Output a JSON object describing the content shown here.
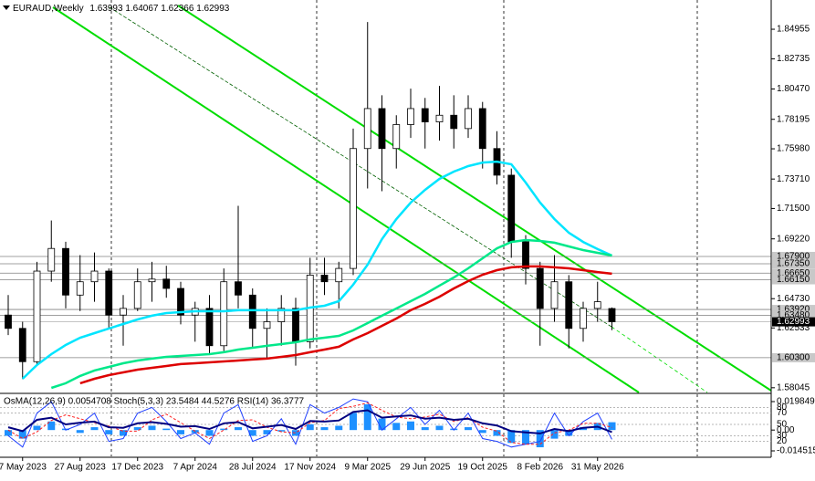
{
  "chart_data": [
    {
      "type": "candlestick",
      "title": "EURAUD,Weekly",
      "header_values": [
        "1.63993",
        "1.64067",
        "1.62366",
        "1.62993"
      ],
      "categories": [
        null,
        "7 May 2023",
        null,
        null,
        null,
        "27 Aug 2023",
        null,
        null,
        null,
        "17 Dec 2023",
        null,
        null,
        null,
        "7 Apr 2024",
        null,
        null,
        null,
        "28 Jul 2024",
        null,
        null,
        null,
        "17 Nov 2024",
        null,
        null,
        null,
        "9 Mar 2025",
        null,
        null,
        null,
        "29 Jun 2025",
        null,
        null,
        null,
        "19 Oct 2025",
        null,
        null,
        null,
        "8 Feb 2026",
        null,
        null,
        null,
        "31 May 2026",
        null
      ],
      "open": [
        1.635,
        1.625,
        1.6,
        1.668,
        1.685,
        1.65,
        1.66,
        1.668,
        1.635,
        1.64,
        1.66,
        1.662,
        1.655,
        1.635,
        1.64,
        1.612,
        1.66,
        1.65,
        1.625,
        1.63,
        1.64,
        1.615,
        1.665,
        1.66,
        1.67,
        1.76,
        1.79,
        1.76,
        1.778,
        1.79,
        1.78,
        1.785,
        1.775,
        1.79,
        1.76,
        1.74,
        1.69,
        1.67,
        1.64,
        1.66,
        1.625,
        1.64,
        1.63993
      ],
      "high": [
        1.65,
        1.63,
        1.675,
        1.706,
        1.69,
        1.68,
        1.682,
        1.67,
        1.65,
        1.67,
        1.675,
        1.672,
        1.66,
        1.645,
        1.65,
        1.67,
        1.717,
        1.655,
        1.64,
        1.65,
        1.648,
        1.678,
        1.678,
        1.675,
        1.775,
        1.855,
        1.8,
        1.785,
        1.805,
        1.798,
        1.807,
        1.8,
        1.8,
        1.795,
        1.773,
        1.745,
        1.695,
        1.675,
        1.68,
        1.665,
        1.645,
        1.66,
        1.64067
      ],
      "low": [
        1.62,
        1.587,
        1.598,
        1.66,
        1.64,
        1.638,
        1.645,
        1.625,
        1.612,
        1.638,
        1.645,
        1.648,
        1.628,
        1.615,
        1.605,
        1.608,
        1.64,
        1.61,
        1.602,
        1.612,
        1.597,
        1.61,
        1.65,
        1.64,
        1.665,
        1.73,
        1.728,
        1.745,
        1.768,
        1.76,
        1.766,
        1.76,
        1.768,
        1.745,
        1.733,
        1.678,
        1.658,
        1.612,
        1.63,
        1.61,
        1.615,
        1.63,
        1.62366
      ],
      "close": [
        1.625,
        1.6,
        1.668,
        1.685,
        1.65,
        1.66,
        1.668,
        1.635,
        1.64,
        1.66,
        1.662,
        1.655,
        1.635,
        1.64,
        1.612,
        1.66,
        1.65,
        1.625,
        1.63,
        1.64,
        1.615,
        1.665,
        1.66,
        1.67,
        1.76,
        1.79,
        1.76,
        1.778,
        1.79,
        1.78,
        1.785,
        1.775,
        1.79,
        1.76,
        1.74,
        1.69,
        1.67,
        1.64,
        1.66,
        1.625,
        1.64,
        1.645,
        1.62993
      ],
      "up_color": "#ffffff",
      "down_color": "#000000",
      "candle_stroke": "#000000",
      "lines": [
        {
          "color": "#00e5ff",
          "values": [
            null,
            1.5872,
            1.5975,
            1.6057,
            1.6125,
            1.618,
            1.6214,
            1.6249,
            1.6283,
            1.6317,
            1.6345,
            1.6365,
            1.6372,
            1.6379,
            1.6379,
            1.6379,
            1.6386,
            1.6386,
            1.6386,
            1.6386,
            1.6386,
            1.6406,
            1.642,
            1.6454,
            1.6578,
            1.6728,
            1.692,
            1.7071,
            1.7194,
            1.729,
            1.7372,
            1.7427,
            1.7468,
            1.7495,
            1.7502,
            1.7482,
            1.7345,
            1.7194,
            1.7071,
            1.6968,
            1.6899,
            1.6845,
            1.6797
          ]
        },
        {
          "color": "#00e88a",
          "values": [
            null,
            null,
            null,
            1.5803,
            1.5838,
            1.5893,
            1.5934,
            1.5961,
            1.5988,
            1.6009,
            1.6023,
            1.6036,
            1.6043,
            1.605,
            1.6057,
            1.6071,
            1.6091,
            1.6105,
            1.6119,
            1.6132,
            1.6146,
            1.6167,
            1.618,
            1.6194,
            1.6235,
            1.629,
            1.6345,
            1.6399,
            1.6454,
            1.6509,
            1.6571,
            1.6632,
            1.6701,
            1.6776,
            1.6851,
            1.6899,
            1.6913,
            1.6906,
            1.6893,
            1.6865,
            1.6838,
            1.6817,
            1.6797
          ]
        },
        {
          "color": "#dd0000",
          "values": [
            null,
            null,
            null,
            null,
            null,
            1.5838,
            1.5872,
            1.5899,
            1.592,
            1.594,
            1.5954,
            1.5968,
            1.5982,
            1.5988,
            1.5995,
            1.6002,
            1.6009,
            1.6016,
            1.6023,
            1.6036,
            1.605,
            1.6071,
            1.6091,
            1.6112,
            1.6167,
            1.6214,
            1.6269,
            1.6324,
            1.6386,
            1.6434,
            1.6488,
            1.655,
            1.6605,
            1.6653,
            1.6687,
            1.6708,
            1.6715,
            1.6715,
            1.6708,
            1.6701,
            1.6687,
            1.6673,
            1.666
          ]
        }
      ],
      "ylim": [
        1.5769,
        1.8715
      ],
      "yticks": [
        1.84955,
        1.82735,
        {
          "value": 1.8047,
          "label": "1.80470"
        },
        1.78195,
        {
          "value": 1.7598,
          "label": "1.75980"
        },
        {
          "value": 1.7371,
          "label": "1.73710"
        },
        {
          "value": 1.715,
          "label": "1.71500"
        },
        {
          "value": 1.6922,
          "label": "1.69220"
        },
        {
          "value": 1.6473,
          "label": "1.64730"
        },
        1.62533,
        1.58045
      ],
      "levels": [
        {
          "value": 1.679,
          "label": "1.67900"
        },
        {
          "value": 1.6735,
          "label": "1.67350"
        },
        {
          "value": 1.6665,
          "label": "1.66650"
        },
        {
          "value": 1.6615,
          "label": "1.66150"
        },
        {
          "value": 1.6392,
          "label": "1.63920"
        },
        {
          "value": 1.6348,
          "label": "1.63480"
        },
        {
          "value": 1.603,
          "label": "1.60300"
        }
      ],
      "level_color": "#c8c8c8",
      "current_price": {
        "value": 1.62993,
        "label": "1.62993"
      }
    },
    {
      "type": "indicator",
      "title": "OsMA(12,26,9) 0.0054708  Stoch(5,3,3) 23.5484 44.5276  RSI(14) 36.3777",
      "values": [
        -0.004,
        -0.006,
        0.003,
        0.006,
        0.001,
        -0.002,
        0.002,
        -0.003,
        -0.004,
        0.002,
        0.003,
        0.001,
        -0.003,
        -0.002,
        -0.004,
        0.001,
        0.002,
        -0.004,
        -0.003,
        -0.001,
        -0.004,
        0.004,
        0.002,
        0.003,
        0.012,
        0.018,
        0.008,
        0.005,
        0.006,
        0.002,
        0.003,
        0.001,
        0.002,
        -0.002,
        -0.004,
        -0.009,
        -0.01,
        -0.012,
        -0.006,
        -0.004,
        0.002,
        0.005,
        0.0054708
      ],
      "color": "#1e90ff",
      "series": [
        {
          "color": "#2040ff",
          "axis": "y2",
          "values": [
            30,
            10,
            70,
            90,
            40,
            50,
            70,
            20,
            25,
            70,
            80,
            55,
            25,
            35,
            15,
            70,
            85,
            20,
            30,
            60,
            15,
            85,
            70,
            80,
            95,
            90,
            40,
            60,
            80,
            50,
            75,
            40,
            70,
            25,
            20,
            10,
            15,
            20,
            70,
            30,
            55,
            70,
            23.5484
          ]
        },
        {
          "color": "#ff2020",
          "axis": "y2",
          "dash": true,
          "values": [
            40,
            25,
            37,
            57,
            67,
            60,
            53,
            47,
            38,
            38,
            58,
            68,
            53,
            38,
            25,
            40,
            57,
            58,
            45,
            37,
            35,
            53,
            57,
            78,
            82,
            88,
            75,
            63,
            60,
            63,
            68,
            55,
            62,
            45,
            38,
            18,
            15,
            15,
            35,
            40,
            52,
            52,
            44.5276
          ]
        },
        {
          "color": "#000080",
          "axis": "y2",
          "width": 2,
          "values": [
            45,
            38,
            58,
            62,
            50,
            53,
            55,
            45,
            44,
            52,
            54,
            51,
            46,
            47,
            42,
            52,
            54,
            43,
            46,
            49,
            42,
            56,
            55,
            57,
            72,
            75,
            62,
            64,
            66,
            60,
            62,
            58,
            60,
            52,
            48,
            38,
            36,
            34,
            42,
            38,
            44,
            46,
            36.3777
          ]
        }
      ],
      "ylim": [
        -0.0145151,
        0.0198491
      ],
      "yticks": [
        0.0198491,
        {
          "value": 0,
          "label": "0.00"
        },
        -0.0145151
      ],
      "y2lim": [
        0,
        100
      ],
      "y2ticks": [
        80,
        70,
        50,
        30,
        20
      ]
    }
  ]
}
